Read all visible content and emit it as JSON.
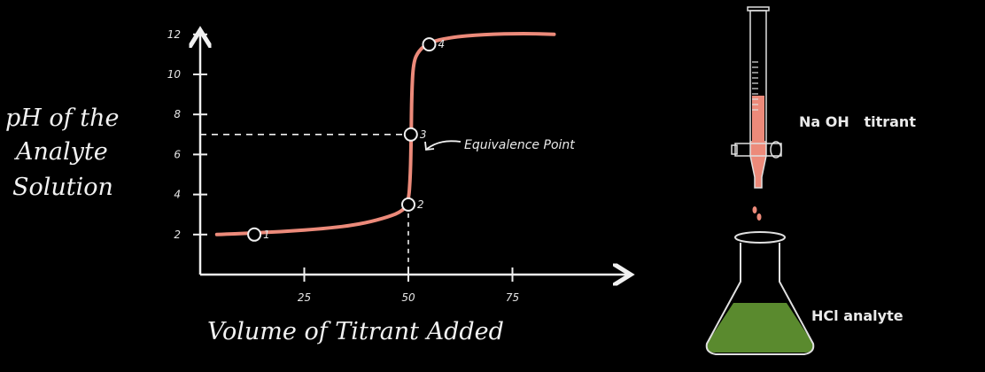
{
  "colors": {
    "background": "#000000",
    "chalk": "#f0f0f0",
    "curve": "#ec8a7a",
    "solution_green": "#5a8a2e"
  },
  "labels": {
    "y_axis_line1": "pH of the",
    "y_axis_line2": "Analyte",
    "y_axis_line3": "Solution",
    "x_axis": "Volume of Titrant Added",
    "equivalence": "Equivalence Point",
    "titrant": "Na OH   titrant",
    "analyte": "HCl analyte"
  },
  "chart_data": {
    "type": "line",
    "x_ticks": [
      "25",
      "50",
      "75"
    ],
    "y_ticks": [
      "2",
      "4",
      "6",
      "8",
      "10",
      "12"
    ],
    "xlim": [
      0,
      100
    ],
    "ylim": [
      0,
      14
    ],
    "series": [
      {
        "values": [
          [
            4,
            2.0
          ],
          [
            10,
            2.05
          ],
          [
            20,
            2.15
          ],
          [
            30,
            2.3
          ],
          [
            38,
            2.5
          ],
          [
            44,
            2.8
          ],
          [
            48,
            3.1
          ],
          [
            50,
            3.5
          ],
          [
            50.5,
            5
          ],
          [
            50.7,
            7
          ],
          [
            50.8,
            9
          ],
          [
            51.2,
            10.6
          ],
          [
            52.5,
            11.2
          ],
          [
            55,
            11.6
          ],
          [
            60,
            11.85
          ],
          [
            68,
            12.0
          ],
          [
            78,
            12.05
          ],
          [
            85,
            12.0
          ]
        ]
      }
    ],
    "points": [
      {
        "label": "1",
        "x": 13,
        "y": 2.0
      },
      {
        "label": "2",
        "x": 50,
        "y": 3.5
      },
      {
        "label": "3",
        "x": 50.6,
        "y": 7.0
      },
      {
        "label": "4",
        "x": 55,
        "y": 11.5
      }
    ],
    "equivalence_point": {
      "x": 50.6,
      "y": 7.0
    }
  }
}
